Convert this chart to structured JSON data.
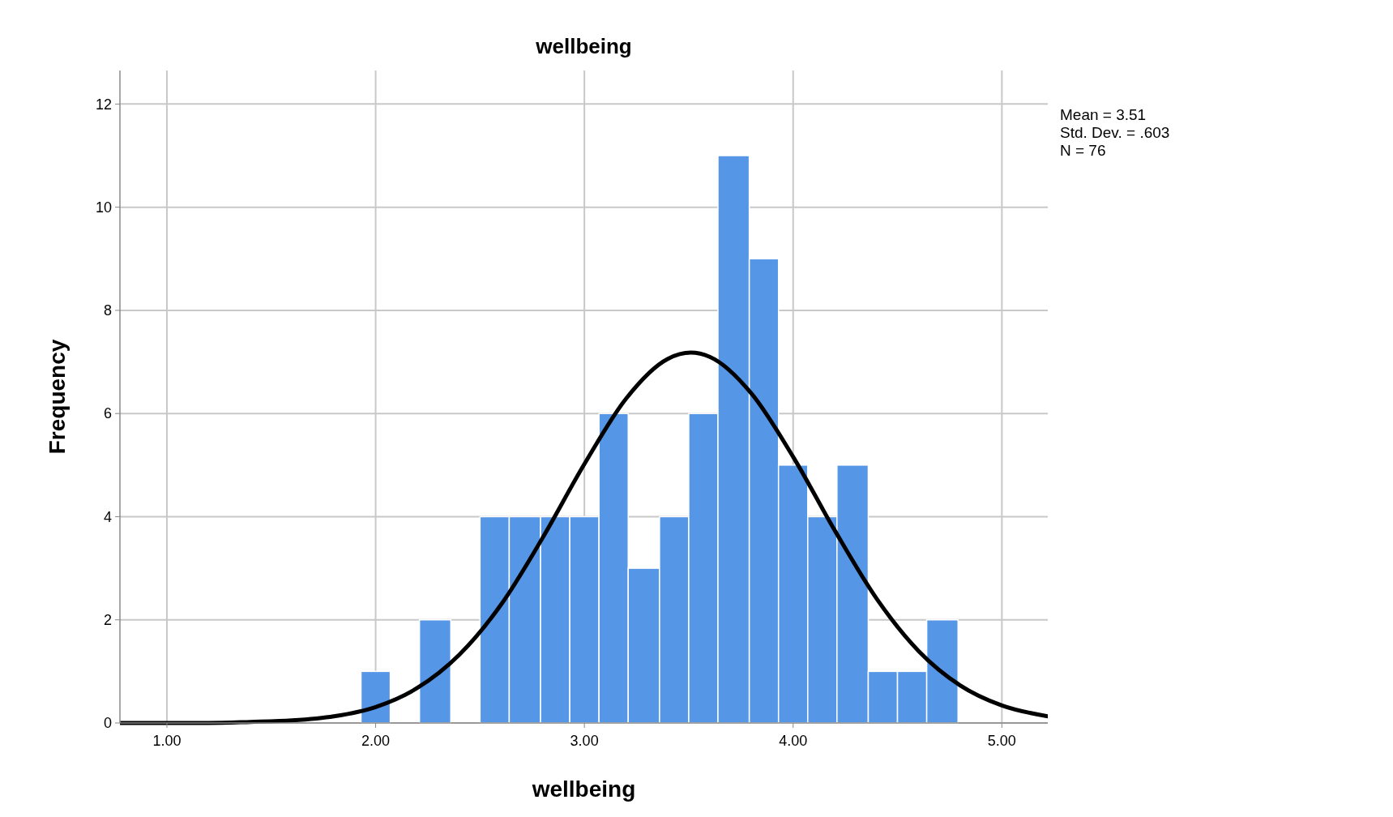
{
  "chart_data": {
    "type": "histogram",
    "title": "wellbeing",
    "xlabel": "wellbeing",
    "ylabel": "Frequency",
    "bins": [
      1.93,
      2.07,
      2.21,
      2.36,
      2.5,
      2.64,
      2.79,
      2.93,
      3.07,
      3.21,
      3.36,
      3.5,
      3.64,
      3.79,
      3.93,
      4.07,
      4.21,
      4.36,
      4.5,
      4.64,
      4.79
    ],
    "values": [
      1,
      0,
      2,
      0,
      4,
      4,
      4,
      4,
      6,
      3,
      4,
      6,
      11,
      9,
      5,
      4,
      5,
      1,
      1,
      2
    ],
    "color": "#5596e6",
    "series": [
      {
        "type": "line",
        "color": "#000000",
        "x": [
          0.78,
          1.0,
          1.2,
          1.4,
          1.6,
          1.8,
          2.0,
          2.2,
          2.4,
          2.6,
          2.8,
          3.0,
          3.2,
          3.4,
          3.51,
          3.6,
          3.8,
          4.0,
          4.2,
          4.4,
          4.6,
          4.8,
          5.0,
          5.22
        ],
        "values": [
          0,
          0,
          0,
          0.02,
          0.05,
          0.13,
          0.31,
          0.68,
          1.32,
          2.29,
          3.59,
          5.02,
          6.29,
          7.06,
          7.18,
          7.1,
          6.39,
          5.16,
          3.73,
          2.41,
          1.4,
          0.73,
          0.34,
          0.13
        ]
      }
    ],
    "xlim": [
      0.775,
      5.22
    ],
    "ylim": [
      0,
      12.65
    ],
    "xticks": [
      {
        "value": 1,
        "label": "1.00"
      },
      {
        "value": 2,
        "label": "2.00"
      },
      {
        "value": 3,
        "label": "3.00"
      },
      {
        "value": 4,
        "label": "4.00"
      },
      {
        "value": 5,
        "label": "5.00"
      }
    ],
    "yticks": [
      0,
      2,
      4,
      6,
      8,
      10,
      12
    ],
    "grid": true,
    "annotations": [
      "Mean = 3.51",
      "Std. Dev. = .603",
      "N = 76"
    ]
  }
}
